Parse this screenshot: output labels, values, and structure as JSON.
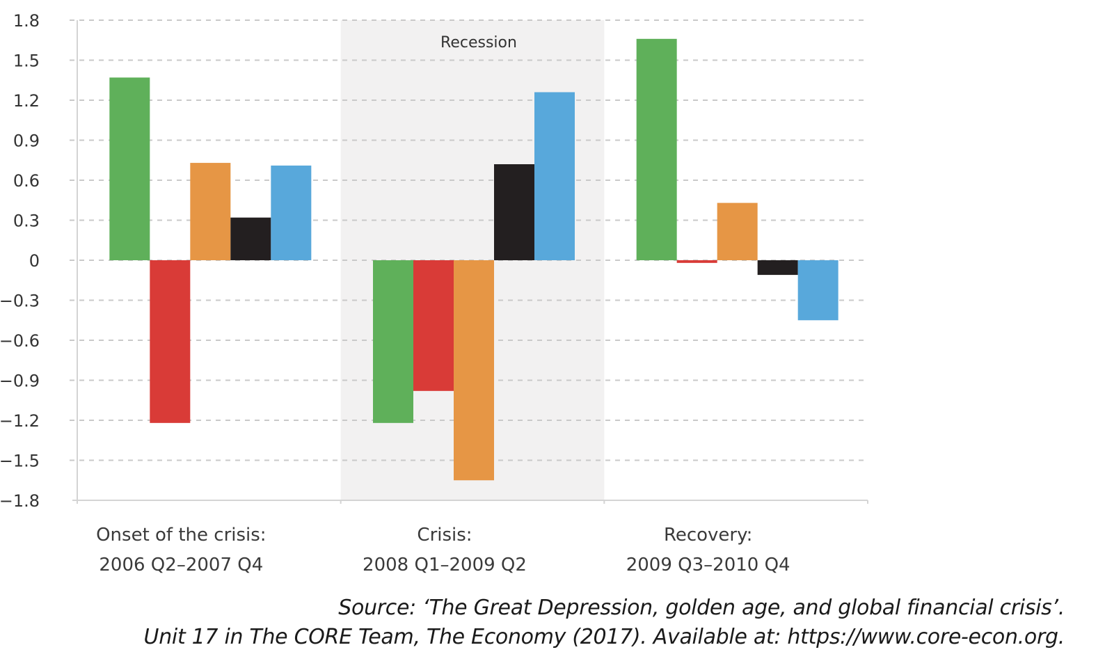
{
  "chart_data": {
    "type": "bar",
    "title": "",
    "xlabel": "",
    "ylabel": "",
    "ylim": [
      -1.8,
      1.8
    ],
    "yticks": [
      1.8,
      1.5,
      1.2,
      0.9,
      0.6,
      0.3,
      0,
      -0.3,
      -0.6,
      -0.9,
      -1.2,
      -1.5,
      -1.8
    ],
    "ytick_labels": [
      "1.8",
      "1.5",
      "1.2",
      "0.9",
      "0.6",
      "0.3",
      "0",
      "−0.3",
      "−0.6",
      "−0.9",
      "−1.2",
      "−1.5",
      "−1.8"
    ],
    "grid": true,
    "categories": [
      {
        "line1": "Onset of the crisis:",
        "line2": "2006 Q2–2007 Q4"
      },
      {
        "line1": "Crisis:",
        "line2": "2008 Q1–2009 Q2"
      },
      {
        "line1": "Recovery:",
        "line2": "2009 Q3–2010 Q4"
      }
    ],
    "series": [
      {
        "name": "Series 1 (green)",
        "color": "#5fb05a",
        "values": [
          1.37,
          -1.22,
          1.66
        ]
      },
      {
        "name": "Series 2 (red)",
        "color": "#d93b37",
        "values": [
          -1.22,
          -0.98,
          -0.02
        ]
      },
      {
        "name": "Series 3 (orange)",
        "color": "#e69645",
        "values": [
          0.73,
          -1.65,
          0.43
        ]
      },
      {
        "name": "Series 4 (black)",
        "color": "#231f20",
        "values": [
          0.32,
          0.72,
          -0.11
        ]
      },
      {
        "name": "Series 5 (blue)",
        "color": "#58a8db",
        "values": [
          0.71,
          1.26,
          -0.45
        ]
      }
    ],
    "shaded_region": {
      "label": "Recession",
      "category_index": 1,
      "color": "#f2f1f1"
    },
    "legend": "none"
  },
  "source": {
    "line1": "Source: ‘The Great Depression, golden age, and global financial crisis’.",
    "line2": "Unit 17 in The CORE Team, The Economy (2017). Available at: https://www.core-econ.org."
  }
}
